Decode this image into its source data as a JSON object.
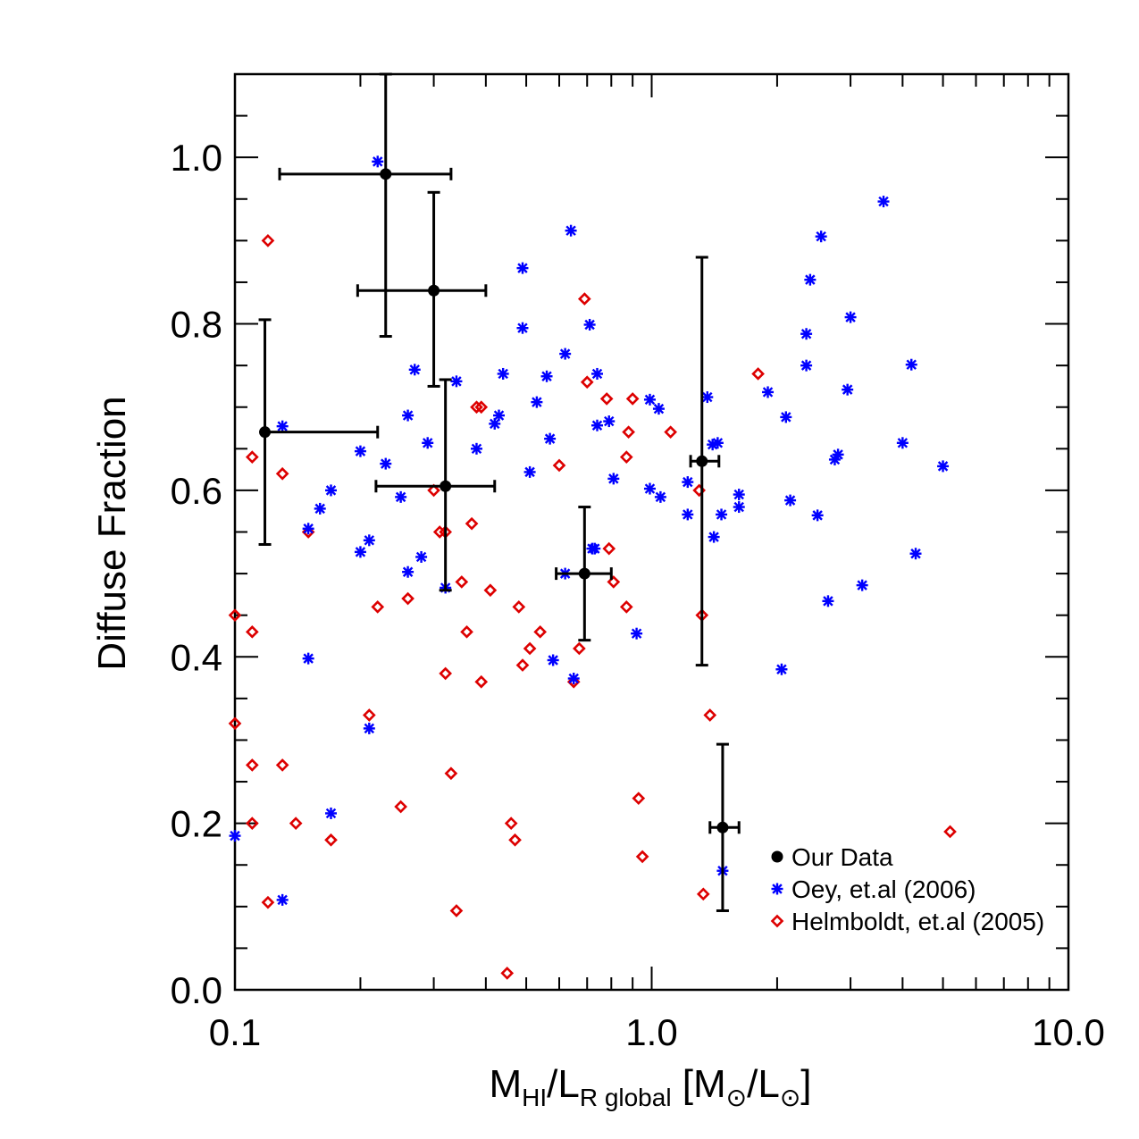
{
  "chart_data": {
    "type": "scatter",
    "xscale": "log",
    "xlim": [
      0.1,
      10.0
    ],
    "ylim": [
      0.0,
      1.1
    ],
    "xticks": [
      {
        "value": 0.1,
        "label": "0.1"
      },
      {
        "value": 1.0,
        "label": "1.0"
      },
      {
        "value": 10.0,
        "label": "10.0"
      }
    ],
    "yticks": [
      {
        "value": 0.0,
        "label": "0.0"
      },
      {
        "value": 0.2,
        "label": "0.2"
      },
      {
        "value": 0.4,
        "label": "0.4"
      },
      {
        "value": 0.6,
        "label": "0.6"
      },
      {
        "value": 0.8,
        "label": "0.8"
      },
      {
        "value": 1.0,
        "label": "1.0"
      }
    ],
    "xlabel": {
      "main1": "M",
      "sub1": "HI",
      "main2": "/L",
      "sub2": "R global",
      "main3": " [M",
      "sym": "⊙",
      "main4": "/L",
      "main5": "]"
    },
    "ylabel": "Diffuse Fraction",
    "grid": false,
    "legend_position": "bottom-right",
    "series": [
      {
        "name": "Our Data",
        "marker": "filled-circle",
        "color": "#000000",
        "points": [
          {
            "x": 0.118,
            "y": 0.67,
            "xerr": [
              0.118,
              0.22
            ],
            "yerr": [
              0.535,
              0.805
            ]
          },
          {
            "x": 0.23,
            "y": 0.98,
            "xerr": [
              0.128,
              0.33
            ],
            "yerr": [
              0.785,
              1.1
            ]
          },
          {
            "x": 0.3,
            "y": 0.84,
            "xerr": [
              0.197,
              0.4
            ],
            "yerr": [
              0.725,
              0.958
            ]
          },
          {
            "x": 0.32,
            "y": 0.605,
            "xerr": [
              0.218,
              0.42
            ],
            "yerr": [
              0.48,
              0.733
            ]
          },
          {
            "x": 0.69,
            "y": 0.5,
            "xerr": [
              0.59,
              0.8
            ],
            "yerr": [
              0.42,
              0.58
            ]
          },
          {
            "x": 1.32,
            "y": 0.635,
            "xerr": [
              1.24,
              1.45
            ],
            "yerr": [
              0.39,
              0.88
            ]
          },
          {
            "x": 1.48,
            "y": 0.195,
            "xerr": [
              1.38,
              1.62
            ],
            "yerr": [
              0.095,
              0.295
            ]
          }
        ]
      },
      {
        "name": "Oey, et.al (2006)",
        "marker": "asterisk",
        "color": "#0000ff",
        "points": [
          {
            "x": 0.22,
            "y": 0.995
          },
          {
            "x": 0.64,
            "y": 0.912
          },
          {
            "x": 0.49,
            "y": 0.867
          },
          {
            "x": 0.49,
            "y": 0.795
          },
          {
            "x": 0.71,
            "y": 0.799
          },
          {
            "x": 0.62,
            "y": 0.764
          },
          {
            "x": 0.27,
            "y": 0.745
          },
          {
            "x": 0.44,
            "y": 0.74
          },
          {
            "x": 0.56,
            "y": 0.737
          },
          {
            "x": 0.34,
            "y": 0.731
          },
          {
            "x": 0.74,
            "y": 0.74
          },
          {
            "x": 0.99,
            "y": 0.709
          },
          {
            "x": 1.04,
            "y": 0.698
          },
          {
            "x": 0.53,
            "y": 0.706
          },
          {
            "x": 0.43,
            "y": 0.69
          },
          {
            "x": 0.42,
            "y": 0.68
          },
          {
            "x": 0.74,
            "y": 0.678
          },
          {
            "x": 0.79,
            "y": 0.683
          },
          {
            "x": 0.26,
            "y": 0.69
          },
          {
            "x": 0.13,
            "y": 0.677
          },
          {
            "x": 0.29,
            "y": 0.657
          },
          {
            "x": 0.38,
            "y": 0.65
          },
          {
            "x": 0.2,
            "y": 0.647
          },
          {
            "x": 0.57,
            "y": 0.662
          },
          {
            "x": 0.23,
            "y": 0.632
          },
          {
            "x": 0.51,
            "y": 0.622
          },
          {
            "x": 0.81,
            "y": 0.614
          },
          {
            "x": 0.25,
            "y": 0.592
          },
          {
            "x": 0.17,
            "y": 0.6
          },
          {
            "x": 0.99,
            "y": 0.602
          },
          {
            "x": 1.05,
            "y": 0.592
          },
          {
            "x": 1.22,
            "y": 0.61
          },
          {
            "x": 1.36,
            "y": 0.712
          },
          {
            "x": 1.4,
            "y": 0.655
          },
          {
            "x": 1.44,
            "y": 0.657
          },
          {
            "x": 0.16,
            "y": 0.578
          },
          {
            "x": 0.15,
            "y": 0.554
          },
          {
            "x": 0.2,
            "y": 0.526
          },
          {
            "x": 0.21,
            "y": 0.54
          },
          {
            "x": 0.28,
            "y": 0.52
          },
          {
            "x": 0.26,
            "y": 0.502
          },
          {
            "x": 0.32,
            "y": 0.483
          },
          {
            "x": 0.62,
            "y": 0.5
          },
          {
            "x": 0.72,
            "y": 0.53
          },
          {
            "x": 0.73,
            "y": 0.53
          },
          {
            "x": 1.22,
            "y": 0.571
          },
          {
            "x": 1.47,
            "y": 0.571
          },
          {
            "x": 1.41,
            "y": 0.544
          },
          {
            "x": 1.62,
            "y": 0.595
          },
          {
            "x": 1.62,
            "y": 0.58
          },
          {
            "x": 0.92,
            "y": 0.428
          },
          {
            "x": 0.58,
            "y": 0.396
          },
          {
            "x": 0.65,
            "y": 0.374
          },
          {
            "x": 0.15,
            "y": 0.398
          },
          {
            "x": 0.21,
            "y": 0.314
          },
          {
            "x": 0.17,
            "y": 0.212
          },
          {
            "x": 0.1,
            "y": 0.185
          },
          {
            "x": 0.13,
            "y": 0.108
          },
          {
            "x": 1.48,
            "y": 0.143
          },
          {
            "x": 1.9,
            "y": 0.718
          },
          {
            "x": 2.1,
            "y": 0.688
          },
          {
            "x": 2.15,
            "y": 0.588
          },
          {
            "x": 2.35,
            "y": 0.75
          },
          {
            "x": 2.35,
            "y": 0.788
          },
          {
            "x": 2.4,
            "y": 0.853
          },
          {
            "x": 2.55,
            "y": 0.905
          },
          {
            "x": 2.5,
            "y": 0.57
          },
          {
            "x": 2.65,
            "y": 0.467
          },
          {
            "x": 2.75,
            "y": 0.637
          },
          {
            "x": 2.8,
            "y": 0.643
          },
          {
            "x": 2.95,
            "y": 0.721
          },
          {
            "x": 3.0,
            "y": 0.808
          },
          {
            "x": 3.2,
            "y": 0.486
          },
          {
            "x": 3.6,
            "y": 0.947
          },
          {
            "x": 4.0,
            "y": 0.657
          },
          {
            "x": 4.2,
            "y": 0.751
          },
          {
            "x": 4.3,
            "y": 0.524
          },
          {
            "x": 5.0,
            "y": 0.629
          },
          {
            "x": 2.05,
            "y": 0.385
          }
        ]
      },
      {
        "name": "Helmboldt, et.al (2005)",
        "marker": "open-diamond",
        "color": "#dd0000",
        "points": [
          {
            "x": 0.12,
            "y": 0.9
          },
          {
            "x": 0.11,
            "y": 0.64
          },
          {
            "x": 0.13,
            "y": 0.62
          },
          {
            "x": 0.1,
            "y": 0.45
          },
          {
            "x": 0.11,
            "y": 0.43
          },
          {
            "x": 0.1,
            "y": 0.32
          },
          {
            "x": 0.11,
            "y": 0.27
          },
          {
            "x": 0.13,
            "y": 0.27
          },
          {
            "x": 0.11,
            "y": 0.2
          },
          {
            "x": 0.14,
            "y": 0.2
          },
          {
            "x": 0.17,
            "y": 0.18
          },
          {
            "x": 0.12,
            "y": 0.105
          },
          {
            "x": 0.15,
            "y": 0.55
          },
          {
            "x": 0.21,
            "y": 0.33
          },
          {
            "x": 0.22,
            "y": 0.46
          },
          {
            "x": 0.25,
            "y": 0.22
          },
          {
            "x": 0.26,
            "y": 0.47
          },
          {
            "x": 0.3,
            "y": 0.6
          },
          {
            "x": 0.31,
            "y": 0.55
          },
          {
            "x": 0.32,
            "y": 0.55
          },
          {
            "x": 0.32,
            "y": 0.38
          },
          {
            "x": 0.33,
            "y": 0.26
          },
          {
            "x": 0.34,
            "y": 0.095
          },
          {
            "x": 0.35,
            "y": 0.49
          },
          {
            "x": 0.36,
            "y": 0.43
          },
          {
            "x": 0.37,
            "y": 0.56
          },
          {
            "x": 0.38,
            "y": 0.7
          },
          {
            "x": 0.39,
            "y": 0.7
          },
          {
            "x": 0.39,
            "y": 0.37
          },
          {
            "x": 0.41,
            "y": 0.48
          },
          {
            "x": 0.46,
            "y": 0.2
          },
          {
            "x": 0.47,
            "y": 0.18
          },
          {
            "x": 0.45,
            "y": 0.02
          },
          {
            "x": 0.48,
            "y": 0.46
          },
          {
            "x": 0.49,
            "y": 0.39
          },
          {
            "x": 0.51,
            "y": 0.41
          },
          {
            "x": 0.54,
            "y": 0.43
          },
          {
            "x": 0.6,
            "y": 0.63
          },
          {
            "x": 0.65,
            "y": 0.37
          },
          {
            "x": 0.67,
            "y": 0.41
          },
          {
            "x": 0.69,
            "y": 0.83
          },
          {
            "x": 0.7,
            "y": 0.73
          },
          {
            "x": 0.78,
            "y": 0.71
          },
          {
            "x": 0.79,
            "y": 0.53
          },
          {
            "x": 0.81,
            "y": 0.49
          },
          {
            "x": 0.87,
            "y": 0.64
          },
          {
            "x": 0.88,
            "y": 0.67
          },
          {
            "x": 0.9,
            "y": 0.71
          },
          {
            "x": 0.87,
            "y": 0.46
          },
          {
            "x": 0.93,
            "y": 0.23
          },
          {
            "x": 0.95,
            "y": 0.16
          },
          {
            "x": 1.11,
            "y": 0.67
          },
          {
            "x": 1.3,
            "y": 0.6
          },
          {
            "x": 1.32,
            "y": 0.45
          },
          {
            "x": 1.38,
            "y": 0.33
          },
          {
            "x": 1.33,
            "y": 0.115
          },
          {
            "x": 1.8,
            "y": 0.74
          },
          {
            "x": 5.2,
            "y": 0.19
          }
        ]
      }
    ]
  }
}
